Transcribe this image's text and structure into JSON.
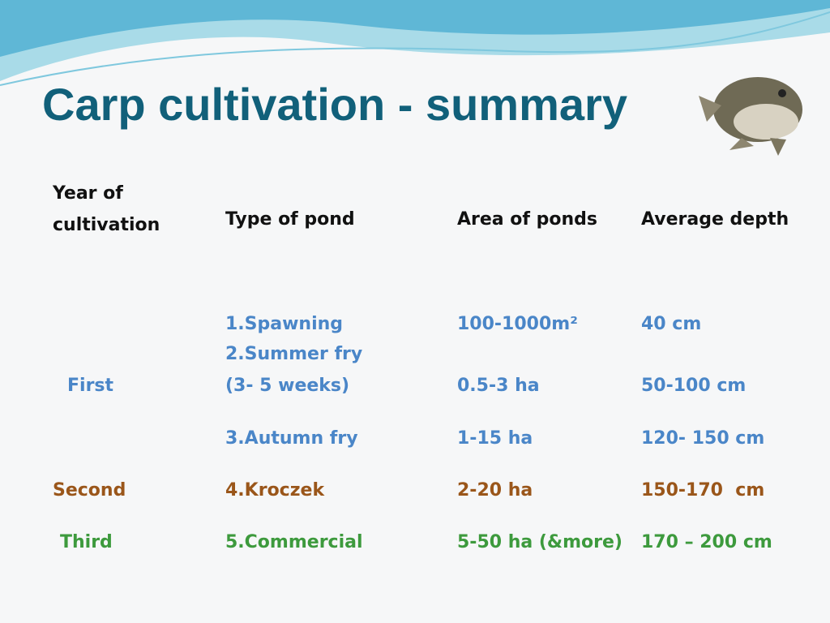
{
  "title": "Carp cultivation - summary",
  "table": {
    "header": [
      "Year of cultivation",
      "Type of pond",
      "Area of ponds",
      "Average depth"
    ],
    "groups": [
      {
        "year": "First",
        "rows": [
          {
            "type": "1.Spawning",
            "area": "100-1000m²",
            "depth": "40 cm"
          },
          {
            "type": "2.Summer fry",
            "type_note": "(3- 5 weeks)",
            "area": "0.5-3 ha",
            "depth": "50-100 cm"
          },
          {
            "type": "3.Autumn fry",
            "area": "1-15 ha",
            "depth": "120- 150 cm"
          }
        ]
      },
      {
        "year": "Second",
        "rows": [
          {
            "type": "4.Kroczek",
            "area": "2-20 ha",
            "depth": "150-170  cm"
          }
        ]
      },
      {
        "year": "Third",
        "rows": [
          {
            "type": "5.Commercial",
            "area": "5-50 ha (&more)",
            "depth": "170 – 200 cm"
          }
        ]
      }
    ]
  }
}
